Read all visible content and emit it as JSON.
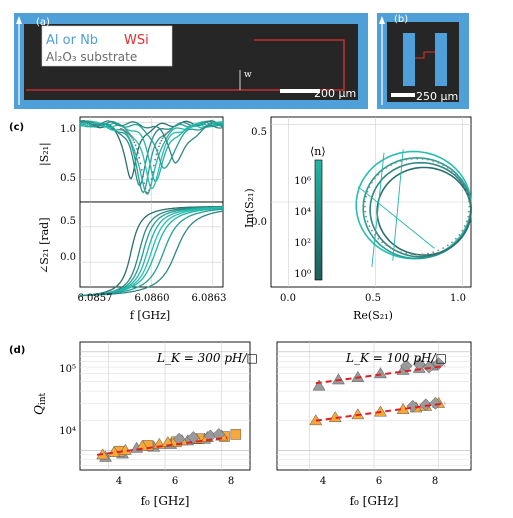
{
  "panels": {
    "a": {
      "tag": "(a)",
      "legend_al": "Al or Nb",
      "legend_wsi": "WSi",
      "legend_sub": "Al₂O₃ substrate",
      "w_label": "w",
      "scale_label": "200 μm"
    },
    "b": {
      "tag": "(b)",
      "scale_label": "250 μm"
    },
    "c": {
      "tag": "(c)",
      "ylabel_top": "|S₂₁|",
      "ylabel_bottom": "∠S₂₁ [rad]",
      "xlabel": "f [GHz]",
      "x_ticks": [
        "6.0857",
        "6.0860",
        "6.0863"
      ],
      "y_ticks_top": [
        "1.0",
        "0.5"
      ],
      "y_ticks_bottom": [
        "0.5",
        "0.0"
      ],
      "polar_xlabel": "Re(S₂₁)",
      "polar_ylabel": "Im(S₂₁)",
      "polar_x_ticks": [
        "0.0",
        "0.5",
        "1.0"
      ],
      "polar_y_ticks": [
        "0.5",
        "0.0"
      ],
      "colorbar_label": "⟨n⟩",
      "colorbar_ticks": [
        "10⁶",
        "10⁴",
        "10²",
        "10⁰"
      ]
    },
    "d": {
      "tag": "(d)",
      "ylabel": "Q",
      "ylabel_sub": "int",
      "xlabel": "f₀ [GHz]",
      "x_ticks": [
        "4",
        "6",
        "8"
      ],
      "y_ticks": [
        "10⁵",
        "10⁴"
      ],
      "left_title": "L_K = 300 pH/□",
      "right_title": "L_K = 100 pH/□"
    }
  },
  "colors": {
    "frame_blue": "#4f9fd8",
    "dark": "#262626",
    "wsi_red": "#e03030",
    "teal": "#22b5a8",
    "dark_teal": "#2a6f6c",
    "orange": "#f7a838",
    "gray": "#9a9a9a",
    "fit_red": "#e02020"
  },
  "chart_data": [
    {
      "type": "line",
      "panel": "c-top",
      "x_range": [
        6.08565,
        6.08635
      ],
      "ylim": [
        0.3,
        1.05
      ],
      "resonance_centers": [
        6.0859,
        6.08594,
        6.08596,
        6.08598,
        6.086,
        6.08602,
        6.08606,
        6.08612
      ],
      "dip_depths": [
        0.5,
        0.55,
        0.6,
        0.65,
        0.58,
        0.5,
        0.42,
        0.35
      ]
    },
    {
      "type": "line",
      "panel": "c-polar",
      "xlim": [
        -0.1,
        1.05
      ],
      "ylim": [
        -0.55,
        0.55
      ],
      "circle_centers": [
        [
          0.72,
          -0.02
        ],
        [
          0.74,
          -0.04
        ],
        [
          0.76,
          -0.05
        ],
        [
          0.78,
          -0.06
        ]
      ],
      "circle_radii": [
        0.33,
        0.31,
        0.29,
        0.27
      ]
    },
    {
      "type": "scatter",
      "panel": "d-left",
      "xlim": [
        3,
        9
      ],
      "ylim_log": [
        3.8,
        5.1
      ],
      "orange_triangles": [
        [
          3.8,
          9000
        ],
        [
          4.2,
          9500
        ],
        [
          4.6,
          10000
        ],
        [
          5.2,
          11000
        ],
        [
          5.8,
          11500
        ],
        [
          6.1,
          12000
        ],
        [
          6.6,
          12500
        ],
        [
          7.1,
          13000
        ],
        [
          7.5,
          13500
        ],
        [
          8.0,
          14000
        ]
      ],
      "gray_triangles": [
        [
          3.9,
          8500
        ],
        [
          4.5,
          9200
        ],
        [
          5.0,
          10500
        ],
        [
          5.6,
          10800
        ],
        [
          6.2,
          11500
        ],
        [
          6.8,
          12500
        ],
        [
          7.4,
          13000
        ]
      ],
      "orange_squares": [
        [
          4.4,
          9800
        ],
        [
          5.4,
          11200
        ],
        [
          6.4,
          12200
        ],
        [
          7.2,
          13100
        ],
        [
          8.1,
          13800
        ],
        [
          8.5,
          14500
        ]
      ],
      "gray_diamonds": [
        [
          6.5,
          13000
        ],
        [
          7.0,
          13500
        ],
        [
          7.6,
          14000
        ],
        [
          7.9,
          14500
        ]
      ],
      "fit": [
        [
          3.6,
          9000
        ],
        [
          8.2,
          13500
        ]
      ]
    },
    {
      "type": "scatter",
      "panel": "d-right",
      "xlim": [
        3,
        9
      ],
      "ylim_log": [
        3.8,
        5.1
      ],
      "gray_triangles_high": [
        [
          4.3,
          45000
        ],
        [
          4.9,
          52000
        ],
        [
          5.5,
          55000
        ],
        [
          6.2,
          60000
        ],
        [
          6.9,
          65000
        ],
        [
          7.4,
          68000
        ],
        [
          7.8,
          72000
        ]
      ],
      "gray_diamonds_high": [
        [
          7.0,
          72000
        ],
        [
          7.4,
          75000
        ],
        [
          7.7,
          70000
        ],
        [
          8.0,
          76000
        ]
      ],
      "orange_triangles_low": [
        [
          4.2,
          20000
        ],
        [
          4.8,
          21500
        ],
        [
          5.5,
          23000
        ],
        [
          6.2,
          24500
        ],
        [
          6.9,
          26000
        ],
        [
          7.3,
          27000
        ],
        [
          7.6,
          28000
        ],
        [
          8.0,
          30000
        ]
      ],
      "gray_diamonds_low": [
        [
          7.2,
          28000
        ],
        [
          7.6,
          29000
        ],
        [
          7.9,
          30000
        ]
      ],
      "fit_high": [
        [
          4.2,
          48000
        ],
        [
          8.2,
          72000
        ]
      ],
      "fit_low": [
        [
          4.2,
          20000
        ],
        [
          8.2,
          30000
        ]
      ]
    }
  ]
}
